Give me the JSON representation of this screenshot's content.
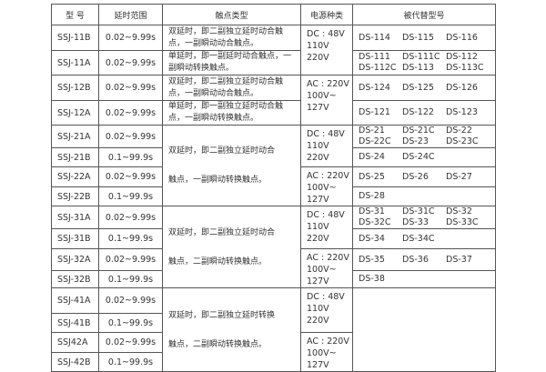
{
  "headers": [
    "型 号",
    "延时范围",
    "触点类型",
    "电源种类",
    "被代替型号"
  ],
  "dc": [
    "DC : 48V",
    "110V",
    "220V"
  ],
  "ac": [
    "AC : 220V",
    "100V~",
    "127V"
  ],
  "models": [
    "SSJ-11B",
    "SSJ-11A",
    "SSJ-12B",
    "SSJ-12A",
    "SSJ-21A",
    "SSJ-21B",
    "SSJ-22A",
    "SSJ-22B",
    "SSJ-31A",
    "SSJ-31B",
    "SSJ-32A",
    "SSJ-32B",
    "SSJ-41A",
    "SSJ-41B",
    "SSJ42A",
    "SSJ-42B"
  ],
  "ranges": [
    "0.02~9.99s",
    "0.02~9.99s",
    "0.02~9.99s",
    "0.02~9.99s",
    "0.02~9.99s",
    "0.1~99.9s",
    "0.02~9.99s",
    "0.1~99.9s",
    "0.02~9.99s",
    "0.1~99.9s",
    "0.02~9.99s",
    "0.1~99.9s",
    "0.02~9.99s",
    "0.1~99.9s",
    "0.02~9.99s",
    "0.1~99.9s"
  ],
  "contacts": [
    "双延时，即二副独立延时动合触点，一副瞬动动合触点。",
    "单延时，即一副延时动合触点，一副瞬动转换触点。",
    "双延时，即二副独立延时动合触点，一副瞬动动合触点。",
    "单延时，即一副独立延时动合触点，一副瞬动转换触点。"
  ],
  "group_contacts": [
    [
      "双延时，即二副独立延时动合",
      "触点，一副瞬动转换触点。"
    ],
    [
      "双延时，即二副独立延时动合",
      "触点，二副瞬动转换触点。"
    ],
    [
      "双延时，即二副独立延时转换",
      "触点，二副瞬动转换触点。"
    ]
  ],
  "replaced": [
    [
      [
        "DS-114",
        "DS-115",
        "DS-116"
      ]
    ],
    [
      [
        "DS-111",
        "DS-111C",
        "DS-112"
      ],
      [
        "DS-112C",
        "DS-113",
        "DS-113C"
      ]
    ],
    [
      [
        "DS-124",
        "DS-125",
        "DS-126"
      ]
    ],
    [
      [
        "DS-121",
        "DS-122",
        "DS-123"
      ]
    ],
    [
      [
        "DS-21",
        "DS-21C",
        "DS-22"
      ],
      [
        "DS-22C",
        "DS-23",
        "DS-23C"
      ]
    ],
    [
      [
        "DS-24",
        "DS-24C"
      ]
    ],
    [
      [
        "DS-25",
        "DS-26",
        "DS-27"
      ]
    ],
    [
      [
        "DS-28"
      ]
    ],
    [
      [
        "DS-31",
        "DS-31C",
        "DS-32"
      ],
      [
        "DS-32C",
        "DS-33",
        "DS-33C"
      ]
    ],
    [
      [
        "DS-34",
        "DS-34C"
      ]
    ],
    [
      [
        "DS-35",
        "DS-36",
        "DS-37"
      ]
    ],
    [
      [
        "DS-38"
      ]
    ]
  ]
}
